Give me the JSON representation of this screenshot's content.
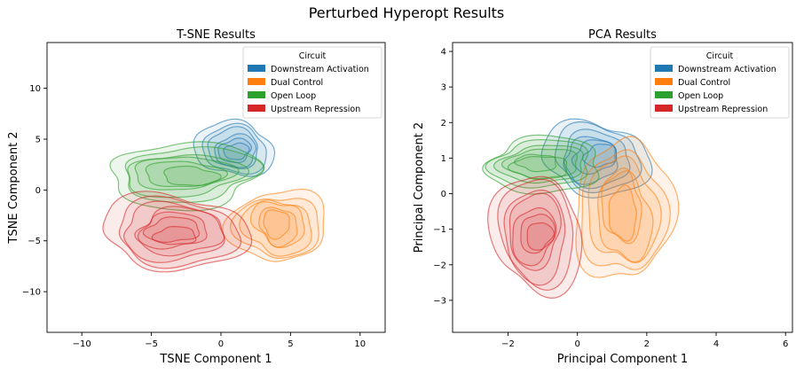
{
  "suptitle": "Perturbed Hyperopt Results",
  "chart_data": [
    {
      "type": "kde-contour",
      "title": "T-SNE Results",
      "xlabel": "TSNE Component 1",
      "ylabel": "TSNE Component 2",
      "xlim": [
        -12.5,
        11.8
      ],
      "ylim": [
        -14,
        14.5
      ],
      "xticks": [
        -10,
        -5,
        0,
        5,
        10
      ],
      "yticks": [
        -10,
        -5,
        0,
        5,
        10
      ],
      "legend": {
        "title": "Circuit",
        "placement": "top-right"
      },
      "series": [
        {
          "name": "Downstream Activation",
          "color": "#1f77b4",
          "center": [
            1.0,
            4.0
          ],
          "spread": [
            3.0,
            2.8
          ],
          "levels": [
            0.2,
            0.35,
            0.5,
            0.62,
            0.75,
            0.86
          ]
        },
        {
          "name": "Dual Control",
          "color": "#ff7f0e",
          "center": [
            4.2,
            -3.5
          ],
          "spread": [
            3.4,
            4.0
          ],
          "levels": [
            0.2,
            0.33,
            0.46,
            0.6,
            0.72,
            0.84
          ]
        },
        {
          "name": "Open Loop",
          "color": "#2ca02c",
          "center": [
            -2.5,
            1.5
          ],
          "spread": [
            6.0,
            3.2
          ],
          "levels": [
            0.2,
            0.34,
            0.48,
            0.6,
            0.72,
            0.84
          ]
        },
        {
          "name": "Upstream Repression",
          "color": "#d62728",
          "center": [
            -3.2,
            -4.2
          ],
          "spread": [
            5.6,
            3.8
          ],
          "levels": [
            0.2,
            0.33,
            0.46,
            0.58,
            0.7,
            0.82,
            0.9
          ]
        }
      ]
    },
    {
      "type": "kde-contour",
      "title": "PCA Results",
      "xlabel": "Principal Component 1",
      "ylabel": "Principal Component 2",
      "xlim": [
        -3.6,
        6.2
      ],
      "ylim": [
        -3.9,
        4.25
      ],
      "xticks": [
        -2,
        0,
        2,
        4,
        6
      ],
      "yticks": [
        -3,
        -2,
        -1,
        0,
        1,
        2,
        3,
        4
      ],
      "legend": {
        "title": "Circuit",
        "placement": "top-right"
      },
      "series": [
        {
          "name": "Downstream Activation",
          "color": "#1f77b4",
          "center": [
            0.5,
            1.0
          ],
          "spread": [
            1.6,
            1.1
          ],
          "levels": [
            0.2,
            0.35,
            0.5,
            0.62,
            0.75,
            0.86
          ]
        },
        {
          "name": "Dual Control",
          "color": "#ff7f0e",
          "center": [
            1.3,
            -0.5
          ],
          "spread": [
            1.4,
            2.2
          ],
          "levels": [
            0.2,
            0.33,
            0.46,
            0.6,
            0.72,
            0.84
          ]
        },
        {
          "name": "Open Loop",
          "color": "#2ca02c",
          "center": [
            -1.0,
            0.8
          ],
          "spread": [
            1.8,
            0.8
          ],
          "levels": [
            0.2,
            0.34,
            0.48,
            0.6,
            0.72,
            0.84
          ]
        },
        {
          "name": "Upstream Repression",
          "color": "#d62728",
          "center": [
            -1.2,
            -1.1
          ],
          "spread": [
            1.4,
            1.7
          ],
          "levels": [
            0.2,
            0.33,
            0.46,
            0.58,
            0.7,
            0.82,
            0.9
          ]
        }
      ]
    }
  ]
}
